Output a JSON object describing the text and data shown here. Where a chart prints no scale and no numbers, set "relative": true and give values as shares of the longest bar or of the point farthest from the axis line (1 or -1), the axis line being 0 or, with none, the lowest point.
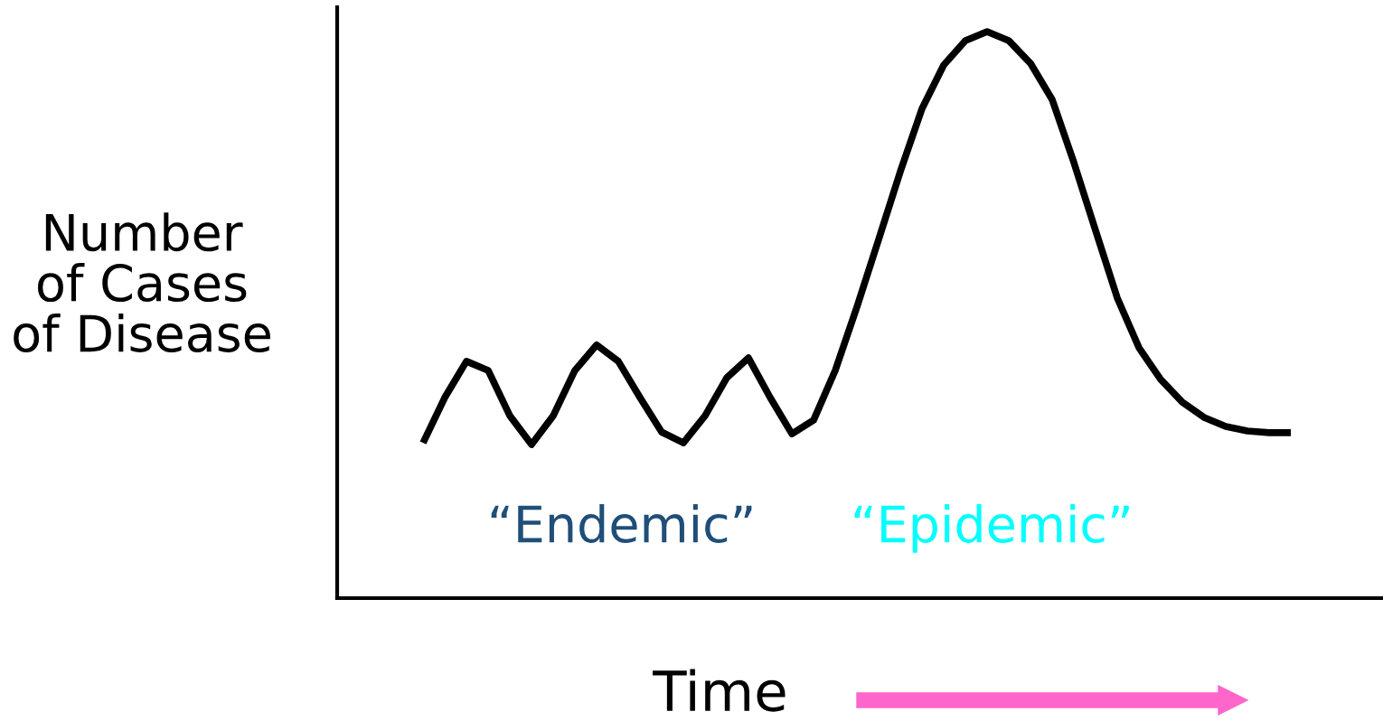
{
  "chart_data": {
    "type": "line",
    "relative": true,
    "xlabel": "Time",
    "ylabel": "Number\nof Cases\nof Disease",
    "categories": [
      null,
      null,
      null,
      null,
      null,
      null,
      null,
      null,
      null,
      null,
      null,
      null,
      null,
      null,
      null,
      null,
      null,
      null,
      null,
      null,
      null,
      null,
      null,
      null,
      null,
      null,
      null,
      null,
      null,
      null,
      null,
      null,
      null,
      null,
      null,
      null,
      null,
      null,
      null,
      null,
      null
    ],
    "series": [
      {
        "color": "#000000",
        "values": [
          0.274,
          0.354,
          0.418,
          0.402,
          0.322,
          0.271,
          0.322,
          0.402,
          0.447,
          0.418,
          0.354,
          0.293,
          0.274,
          0.322,
          0.389,
          0.424,
          0.354,
          0.29,
          0.314,
          0.402,
          0.514,
          0.633,
          0.753,
          0.864,
          0.941,
          0.984,
          1.0,
          0.984,
          0.944,
          0.88,
          0.769,
          0.649,
          0.53,
          0.442,
          0.386,
          0.346,
          0.319,
          0.303,
          0.295,
          0.292,
          0.292
        ]
      }
    ],
    "annotations": [
      "“Endemic”",
      "“Epidemic”"
    ],
    "grid": false,
    "legend": false,
    "marker": "none",
    "line_style": "solid"
  }
}
